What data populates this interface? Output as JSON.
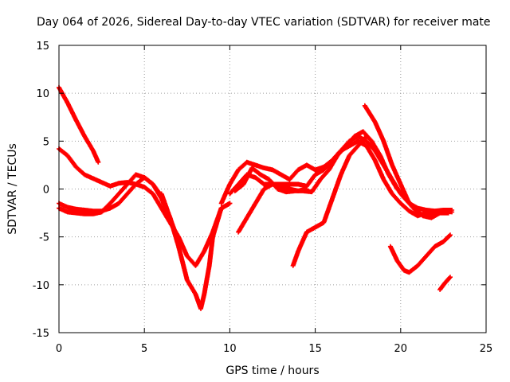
{
  "chart_data": {
    "type": "scatter",
    "title": "Day 064 of 2026, Sidereal Day-to-day VTEC variation (SDTVAR) for receiver mate",
    "xlabel": "GPS time / hours",
    "ylabel": "SDTVAR / TECUs",
    "xlim": [
      0,
      25
    ],
    "ylim": [
      -15,
      15
    ],
    "xticks": [
      0,
      5,
      10,
      15,
      20,
      25
    ],
    "yticks": [
      -15,
      -10,
      -5,
      0,
      5,
      10,
      15
    ],
    "grid": true,
    "grid_style": "dotted",
    "legend": "none",
    "marker": "plus",
    "color": "#ff0000",
    "series": [
      {
        "x": [
          0,
          0.5,
          1.0,
          1.5,
          2.0,
          2.3
        ],
        "y": [
          10.6,
          9.0,
          7.2,
          5.5,
          4.0,
          2.8
        ]
      },
      {
        "x": [
          0,
          0.5,
          1.0,
          1.5,
          2.0,
          2.5,
          3.0,
          3.5,
          4.0,
          4.5,
          5.0,
          5.5,
          6.0,
          6.5,
          7.0,
          7.5,
          8.0,
          8.5,
          9.0,
          9.5,
          10.0
        ],
        "y": [
          4.2,
          3.5,
          2.3,
          1.5,
          1.1,
          0.7,
          0.3,
          0.6,
          0.7,
          0.5,
          0.2,
          -0.5,
          -2.0,
          -3.5,
          -5.0,
          -7.0,
          -8.0,
          -6.5,
          -4.5,
          -2.0,
          -1.5
        ]
      },
      {
        "x": [
          0,
          0.5,
          1.0,
          1.5,
          2.0,
          2.5,
          3.0,
          3.5,
          4.0,
          4.5,
          5.0,
          5.5,
          6.0,
          6.5,
          6.8
        ],
        "y": [
          -1.5,
          -1.9,
          -2.1,
          -2.2,
          -2.3,
          -2.3,
          -2.0,
          -1.5,
          -0.5,
          0.5,
          1.2,
          0.5,
          -1.0,
          -3.0,
          -4.5
        ]
      },
      {
        "x": [
          0,
          0.5,
          1.0,
          1.5,
          2.0,
          2.5,
          3.0,
          3.5,
          4.0,
          4.5,
          5.0,
          5.5,
          5.9
        ],
        "y": [
          -2.0,
          -2.4,
          -2.5,
          -2.6,
          -2.6,
          -2.4,
          -1.5,
          -0.5,
          0.5,
          1.5,
          1.2,
          0.5,
          -0.5
        ]
      },
      {
        "x": [
          6.0,
          6.5,
          7.0,
          7.5,
          8.0,
          8.3,
          8.5,
          8.8,
          9.0,
          9.5,
          10.0
        ],
        "y": [
          -0.5,
          -3.0,
          -6.0,
          -9.5,
          -11.0,
          -12.5,
          -11.0,
          -8.0,
          -5.0,
          -2.0,
          -1.5
        ]
      },
      {
        "x": [
          9.5,
          10.0,
          10.5,
          11.0,
          11.5,
          12.0,
          12.5,
          13.0,
          13.5,
          14.0,
          14.5,
          15.0,
          15.5,
          16.0,
          16.5,
          17.0,
          17.5,
          18.0,
          18.5,
          19.0,
          19.5,
          20.0,
          20.5,
          21.0,
          21.5,
          22.0,
          22.5,
          23.0
        ],
        "y": [
          -1.5,
          0.5,
          2.0,
          2.8,
          2.5,
          2.2,
          2.0,
          1.5,
          1.0,
          2.0,
          2.5,
          2.0,
          2.3,
          3.0,
          4.0,
          5.0,
          5.5,
          5.0,
          4.0,
          2.5,
          1.0,
          -0.5,
          -1.5,
          -2.0,
          -2.2,
          -2.3,
          -2.3,
          -2.4
        ]
      },
      {
        "x": [
          10.0,
          10.5,
          11.0,
          11.5,
          12.0,
          12.5,
          13.0,
          13.5,
          14.0,
          14.5,
          15.0,
          15.5,
          16.0,
          16.5,
          17.0,
          17.5,
          18.0,
          18.5,
          19.0,
          19.5,
          20.0,
          20.5,
          21.0,
          21.5,
          22.0,
          22.5,
          23.0
        ],
        "y": [
          -0.5,
          0.5,
          1.5,
          1.2,
          0.5,
          0.5,
          0.5,
          0.5,
          0.5,
          0.3,
          1.5,
          2.0,
          3.0,
          4.0,
          4.5,
          5.0,
          4.5,
          3.0,
          1.0,
          -0.5,
          -1.5,
          -2.3,
          -2.8,
          -2.5,
          -2.3,
          -2.2,
          -2.2
        ]
      },
      {
        "x": [
          10.3,
          10.8,
          11.3,
          11.8,
          12.3,
          12.8,
          13.3,
          13.8,
          14.3,
          14.8,
          15.3,
          15.8,
          16.3,
          16.8,
          17.3,
          17.8,
          18.3,
          18.8,
          19.3,
          19.8,
          20.3,
          20.8,
          21.3,
          21.8,
          22.3,
          22.8
        ],
        "y": [
          -0.2,
          0.5,
          2.2,
          1.5,
          1.0,
          0.0,
          -0.3,
          -0.2,
          -0.2,
          -0.3,
          1.0,
          2.0,
          3.5,
          4.5,
          5.5,
          6.0,
          5.0,
          3.5,
          1.5,
          0.0,
          -1.0,
          -2.0,
          -2.8,
          -3.0,
          -2.5,
          -2.5
        ]
      },
      {
        "x": [
          10.5,
          11.0,
          11.5,
          12.0,
          12.5,
          13.0,
          13.5,
          14.0,
          14.5
        ],
        "y": [
          -4.5,
          -3.0,
          -1.5,
          0.0,
          0.5,
          0.3,
          0.0,
          -0.2,
          0.0
        ]
      },
      {
        "x": [
          13.7,
          14.0,
          14.5,
          15.0,
          15.5,
          16.0,
          16.5,
          17.0,
          17.5,
          18.0
        ],
        "y": [
          -8.0,
          -6.5,
          -4.5,
          -4.0,
          -3.5,
          -1.0,
          1.5,
          3.5,
          4.5,
          5.5
        ]
      },
      {
        "x": [
          17.9,
          18.5,
          19.0,
          19.5,
          20.0,
          20.5,
          21.0,
          21.5,
          22.0,
          22.5,
          22.9
        ],
        "y": [
          8.7,
          7.0,
          5.0,
          2.5,
          0.5,
          -1.5,
          -2.5,
          -2.8,
          -2.5,
          -2.3,
          -2.2
        ]
      },
      {
        "x": [
          19.4,
          19.8,
          20.2,
          20.5,
          21.0,
          21.5,
          22.0,
          22.5,
          22.9
        ],
        "y": [
          -6.0,
          -7.5,
          -8.5,
          -8.7,
          -8.0,
          -7.0,
          -6.0,
          -5.5,
          -4.8
        ]
      },
      {
        "x": [
          22.3,
          22.6,
          22.9
        ],
        "y": [
          -10.5,
          -9.8,
          -9.2
        ]
      }
    ]
  }
}
